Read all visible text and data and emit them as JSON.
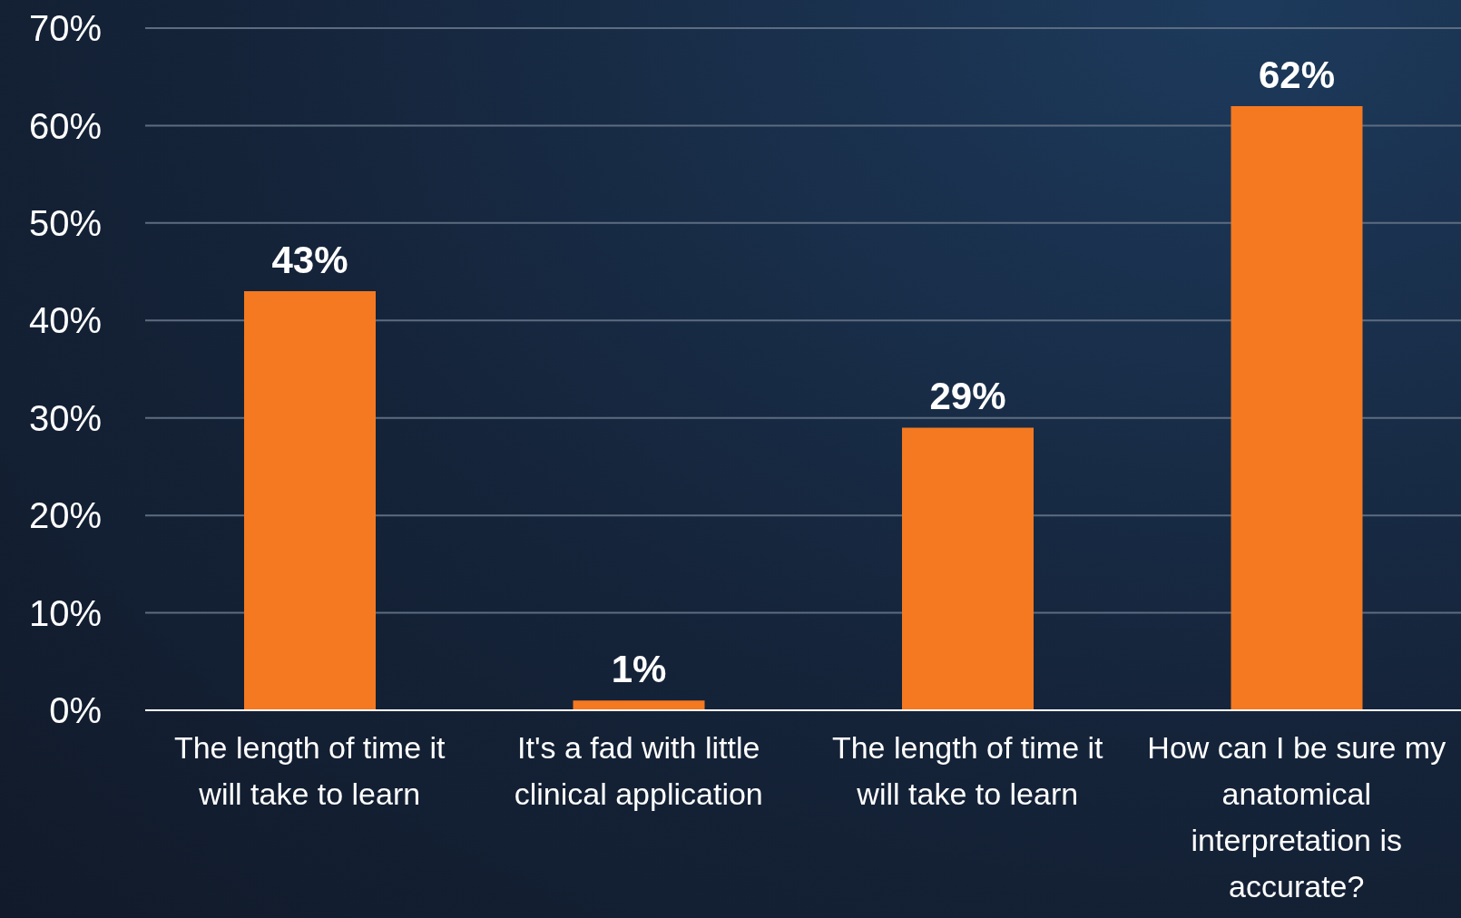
{
  "chart_data": {
    "type": "bar",
    "categories": [
      "The length of time it will take to learn",
      "It's a fad with little clinical application",
      "The length of time it will take to learn",
      "How can I be sure my anatomical interpretation is accurate?"
    ],
    "values": [
      43,
      1,
      29,
      62
    ],
    "value_labels": [
      "43%",
      "1%",
      "29%",
      "62%"
    ],
    "color": "#f47920",
    "ylim": [
      0,
      70
    ],
    "yticks": [
      {
        "value": 0,
        "label": "0%"
      },
      {
        "value": 10,
        "label": "10%"
      },
      {
        "value": 20,
        "label": "20%"
      },
      {
        "value": 30,
        "label": "30%"
      },
      {
        "value": 40,
        "label": "40%"
      },
      {
        "value": 50,
        "label": "50%"
      },
      {
        "value": 60,
        "label": "60%"
      },
      {
        "value": 70,
        "label": "70%"
      }
    ],
    "grid": "y",
    "legend": false
  }
}
